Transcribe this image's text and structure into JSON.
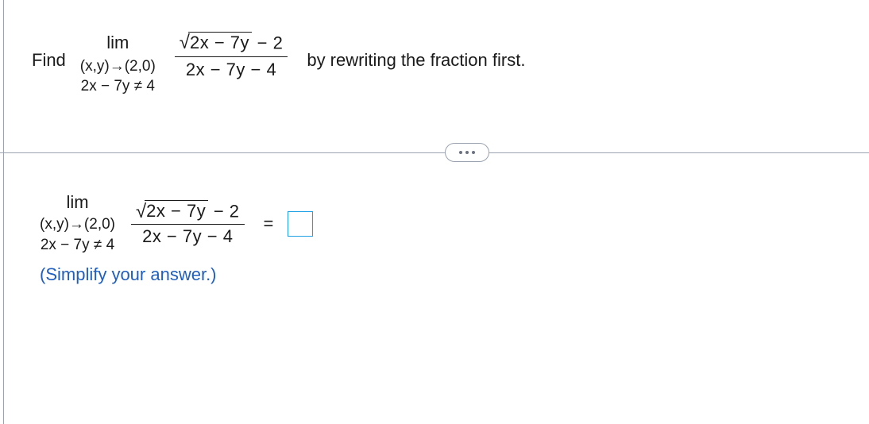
{
  "prompt": {
    "lead": "Find",
    "trail": "by rewriting the fraction first."
  },
  "limit": {
    "operator": "lim",
    "approach": "(x,y)→(2,0)",
    "condition": "2x − 7y ≠ 4"
  },
  "fraction": {
    "radicand": "2x − 7y",
    "num_tail": " − 2",
    "denominator": "2x − 7y − 4"
  },
  "equals": "=",
  "hint": "(Simplify your answer.)",
  "colors": {
    "text": "#1a1a1a",
    "hint": "#1f5fbf",
    "inputBorder": "#22a0e6",
    "divider": "#9aa3af",
    "background": "#ffffff"
  },
  "typography": {
    "baseFontSize": 22,
    "subFontSize": 19,
    "fontFamily": "Arial"
  }
}
